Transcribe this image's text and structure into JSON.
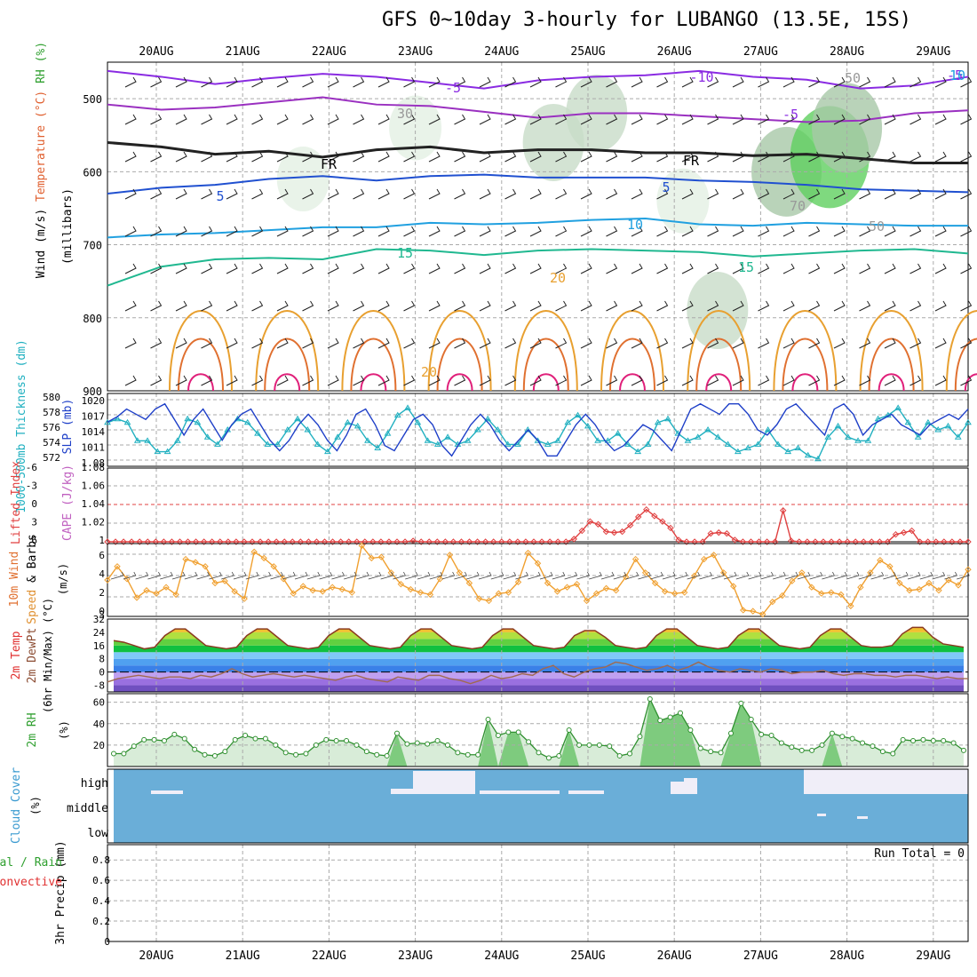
{
  "title": "GFS 0~10day 3-hourly for LUBANGO (13.5E, 15S)",
  "chart_data": [
    {
      "type": "line",
      "name": "upper-air-cross-section",
      "days": [
        "20AUG",
        "21AUG",
        "22AUG",
        "23AUG",
        "24AUG",
        "25AUG",
        "26AUG",
        "27AUG",
        "28AUG",
        "29AUG"
      ],
      "ylabel_parts": [
        {
          "text": "Wind (m/s)",
          "color": "#000000"
        },
        {
          "text": "Temperature (°C)",
          "color": "#e06030"
        },
        {
          "text": "RH (%)",
          "color": "#30a030"
        },
        {
          "text": "(millibars)",
          "color": "#000000"
        }
      ],
      "yticks": [
        500,
        600,
        700,
        800,
        900
      ],
      "ylim": [
        450,
        900
      ],
      "contour_labels": [
        "-10",
        "-5",
        "-5",
        "-5",
        "FR",
        "FR",
        "5",
        "5",
        "10",
        "15",
        "15",
        "20",
        "20",
        "10",
        "30",
        "50",
        "50",
        "70"
      ],
      "isotherms": [
        {
          "label": "-10",
          "color": "#8a2be2",
          "p": [
            462,
            470,
            480,
            472,
            466,
            470,
            478,
            486,
            475,
            470,
            468,
            462,
            470,
            474,
            486,
            482,
            470
          ]
        },
        {
          "label": "-5",
          "color": "#9a30c0",
          "p": [
            508,
            515,
            512,
            505,
            498,
            508,
            510,
            518,
            526,
            520,
            520,
            524,
            528,
            532,
            530,
            520,
            516
          ]
        },
        {
          "label": "FR",
          "color": "#222222",
          "p": [
            560,
            566,
            576,
            572,
            580,
            570,
            566,
            574,
            570,
            570,
            574,
            574,
            578,
            576,
            582,
            588,
            588
          ]
        },
        {
          "label": "5",
          "color": "#2050d0",
          "p": [
            630,
            622,
            618,
            610,
            606,
            612,
            606,
            604,
            608,
            608,
            608,
            612,
            614,
            618,
            624,
            626,
            628
          ]
        },
        {
          "label": "10",
          "color": "#20a0e0",
          "p": [
            690,
            686,
            684,
            680,
            676,
            676,
            670,
            672,
            670,
            666,
            664,
            672,
            674,
            670,
            672,
            674,
            674
          ]
        },
        {
          "label": "15",
          "color": "#20b890",
          "p": [
            756,
            730,
            720,
            718,
            720,
            706,
            708,
            714,
            708,
            706,
            708,
            710,
            716,
            712,
            708,
            706,
            712
          ]
        }
      ],
      "rh_cells": [
        {
          "day": 4.6,
          "p": 560,
          "rh": 50
        },
        {
          "day": 5.1,
          "p": 520,
          "rh": 50
        },
        {
          "day": 7.3,
          "p": 600,
          "rh": 70
        },
        {
          "day": 7.8,
          "p": 580,
          "rh": 90
        },
        {
          "day": 8.0,
          "p": 540,
          "rh": 70
        },
        {
          "day": 6.1,
          "p": 640,
          "rh": 30
        },
        {
          "day": 3.0,
          "p": 540,
          "rh": 30
        },
        {
          "day": 1.7,
          "p": 610,
          "rh": 30
        },
        {
          "day": 6.5,
          "p": 790,
          "rh": 50
        }
      ]
    },
    {
      "type": "line",
      "name": "thickness-slp",
      "ylabel_left": "1000-500mb Thickness (dm)",
      "ylabel_right": "SLP (mb)",
      "left_ticks": [
        "580",
        "578",
        "576",
        "574",
        "572"
      ],
      "right_ticks": [
        "1020",
        "1017",
        "1014",
        "1011",
        "1.08"
      ],
      "series": [
        {
          "name": "SLP",
          "color": "#1e3fc8",
          "marker": "none",
          "values": [
            1016.5,
            1017.5,
            1019,
            1018,
            1017,
            1019,
            1020,
            1017,
            1014,
            1017,
            1019,
            1016,
            1013,
            1016,
            1018,
            1019,
            1016,
            1013,
            1011,
            1013,
            1016,
            1018,
            1016,
            1013,
            1011,
            1014,
            1018,
            1019,
            1016,
            1012,
            1011,
            1014,
            1017,
            1018,
            1016,
            1012,
            1010,
            1013,
            1016,
            1018,
            1016,
            1013,
            1011,
            1013,
            1015,
            1013,
            1010,
            1010,
            1013,
            1016,
            1018,
            1016,
            1013,
            1011,
            1012,
            1014,
            1016,
            1015,
            1013,
            1011,
            1015,
            1019,
            1020,
            1019,
            1018,
            1020,
            1020,
            1018,
            1015,
            1014,
            1016,
            1019,
            1020,
            1018,
            1016,
            1014,
            1019,
            1020,
            1018,
            1014,
            1016,
            1017,
            1018,
            1016,
            1015,
            1014,
            1016,
            1017,
            1018,
            1017,
            1019
          ]
        },
        {
          "name": "Thickness",
          "color": "#20b0c0",
          "marker": "triangle",
          "values": [
            577,
            577.5,
            577,
            574.5,
            574.5,
            573,
            573,
            574.5,
            577.5,
            577,
            575,
            574,
            576,
            577.5,
            577,
            575.5,
            574,
            574,
            576,
            577.5,
            576,
            574,
            573,
            575,
            577,
            576.5,
            574.5,
            573.5,
            575.5,
            578,
            579,
            577,
            574.5,
            574,
            575,
            574,
            574.5,
            576,
            577.5,
            576,
            574,
            574,
            576,
            574.5,
            574,
            574.5,
            577,
            578,
            576.5,
            574.5,
            574.5,
            575.5,
            574,
            573,
            574,
            577,
            577.5,
            575.5,
            574.5,
            575,
            576,
            575,
            574,
            573,
            573.5,
            574,
            576,
            574,
            573,
            573.5,
            572.5,
            572,
            575,
            576.5,
            575,
            574.5,
            574.5,
            577.5,
            578,
            579,
            577,
            575,
            577,
            576,
            576.5,
            575,
            577
          ]
        }
      ]
    },
    {
      "type": "line",
      "name": "lifted-index-cape",
      "ylabel_left": "Lifted Index",
      "ylabel_right": "CAPE (J/kg)",
      "left_ticks": [
        "-6",
        "-3",
        "0",
        "3",
        "6"
      ],
      "right_ticks": [
        "1.08",
        "1.06",
        "1.04",
        "1.02",
        "1"
      ],
      "series": [
        {
          "name": "CAPE",
          "color": "#e04040",
          "marker": "diamond",
          "values": [
            1,
            1,
            1,
            1,
            1,
            1,
            1,
            1,
            1,
            1,
            1,
            1,
            1,
            1,
            1,
            1,
            1,
            1,
            1,
            1,
            1,
            1,
            1,
            1,
            1,
            1,
            1,
            1,
            1,
            1,
            1,
            1,
            1,
            1,
            1,
            1,
            1,
            1,
            1.001,
            1,
            1,
            1,
            1,
            1,
            1,
            1,
            1,
            1,
            1,
            1,
            1,
            1,
            1,
            1,
            1,
            1,
            1,
            1,
            1.003,
            1.012,
            1.022,
            1.019,
            1.011,
            1.01,
            1.011,
            1.018,
            1.027,
            1.035,
            1.028,
            1.022,
            1.015,
            1.002,
            1,
            1,
            1,
            1.009,
            1.01,
            1.009,
            1.002,
            1,
            1,
            1,
            1,
            1,
            1.034,
            1.001,
            1,
            1,
            1,
            1,
            1,
            1,
            1,
            1,
            1,
            1,
            1,
            1,
            1.008,
            1.01,
            1.012,
            1,
            1,
            1,
            1,
            1,
            1,
            1
          ]
        }
      ]
    },
    {
      "type": "line",
      "name": "10m-wind",
      "ylabel_parts": [
        {
          "text": "10m Wind",
          "color": "#e07030"
        },
        {
          "text": "Speed",
          "color": "#e09030"
        },
        {
          "text": "& Barbs",
          "color": "#000000"
        },
        {
          "text": "(m/s)",
          "color": "#000000"
        }
      ],
      "yticks": [
        "6",
        "4",
        "2",
        "0"
      ],
      "ylim": [
        0,
        7
      ],
      "series": [
        {
          "name": "Speed",
          "color": "#f0a030",
          "marker": "diamond",
          "values": [
            3.5,
            4.8,
            3.6,
            1.8,
            2.5,
            2.2,
            2.8,
            2.1,
            5.5,
            5.2,
            4.8,
            3.2,
            3.4,
            2.4,
            1.7,
            6.2,
            5.6,
            4.8,
            3.6,
            2.2,
            2.9,
            2.5,
            2.4,
            2.8,
            2.6,
            2.3,
            6.8,
            5.6,
            5.7,
            4.2,
            3.1,
            2.6,
            2.3,
            2.1,
            3.6,
            5.9,
            4.2,
            3.2,
            1.7,
            1.5,
            2.2,
            2.3,
            3.3,
            6.1,
            5.1,
            3.2,
            2.4,
            2.8,
            3.1,
            1.5,
            2.2,
            2.7,
            2.5,
            3.8,
            5.5,
            4.2,
            3.2,
            2.4,
            2.2,
            2.3,
            3.9,
            5.5,
            5.9,
            4.2,
            2.9,
            0.6,
            0.5,
            0.2,
            1.4,
            2.0,
            3.4,
            4.2,
            2.8,
            2.2,
            2.3,
            2.1,
            1.0,
            2.8,
            4.2,
            5.4,
            4.8,
            3.2,
            2.5,
            2.6,
            3.2,
            2.5,
            3.5,
            3.0,
            4.5
          ]
        }
      ]
    },
    {
      "type": "area",
      "name": "2m-temp-dewpoint",
      "ylabel_parts": [
        {
          "text": "2m Temp",
          "color": "#e03030"
        },
        {
          "text": "2m DewPt",
          "color": "#8a4a30"
        },
        {
          "text": "(6hr Min/Max) (°C)",
          "color": "#000000"
        }
      ],
      "yticks": [
        "32",
        "24",
        "16",
        "8",
        "0",
        "-8"
      ],
      "ylim": [
        -12,
        32
      ],
      "series": [
        {
          "name": "2m Temp",
          "color": "#8a3a20",
          "values": [
            19,
            18,
            16,
            14,
            15,
            22,
            26,
            26,
            21,
            16,
            15,
            14,
            15,
            22,
            26,
            26,
            21,
            16,
            15,
            14,
            15,
            22,
            26,
            26,
            21,
            16,
            15,
            14,
            15,
            22,
            26,
            26,
            21,
            16,
            15,
            14,
            15,
            22,
            26,
            26,
            21,
            16,
            15,
            14,
            15,
            22,
            25,
            25,
            21,
            16,
            15,
            14,
            15,
            22,
            26,
            26,
            21,
            16,
            15,
            14,
            15,
            22,
            26,
            26,
            21,
            16,
            15,
            14,
            15,
            22,
            26,
            26,
            21,
            16,
            15,
            15,
            16,
            23,
            27,
            27,
            21,
            17,
            16,
            15
          ]
        },
        {
          "name": "2m DewPt",
          "color": "#a06a50",
          "values": [
            -6,
            -4,
            -3,
            -2,
            -3,
            -4,
            -3,
            -3,
            -4,
            -2,
            -3,
            -1,
            2,
            -1,
            -3,
            -2,
            -1,
            -2,
            -3,
            -2,
            -3,
            -4,
            -5,
            -3,
            -2,
            -4,
            -5,
            -6,
            -3,
            -4,
            -5,
            -2,
            -2,
            -4,
            -5,
            -7,
            -5,
            -2,
            -4,
            -3,
            -1,
            -2,
            2,
            4,
            -1,
            -3,
            0,
            2,
            3,
            6,
            5,
            3,
            1,
            2,
            4,
            1,
            3,
            6,
            3,
            1,
            0,
            2,
            1,
            0,
            2,
            1,
            -1,
            0,
            0,
            1,
            -1,
            -2,
            -1,
            -1,
            -2,
            -2,
            -3,
            -2,
            -2,
            -3,
            -4,
            -3,
            -4,
            -4
          ]
        }
      ]
    },
    {
      "type": "area",
      "name": "2m-rh",
      "ylabel": "2m RH (%)",
      "yticks": [
        "60",
        "40",
        "20"
      ],
      "ylim": [
        0,
        68
      ],
      "series": [
        {
          "name": "2m RH",
          "color": "#30a030",
          "values": [
            12,
            12,
            19,
            25,
            25,
            24,
            30,
            26,
            16,
            11,
            10,
            14,
            25,
            29,
            26,
            26,
            20,
            13,
            11,
            12,
            20,
            25,
            24,
            24,
            20,
            14,
            11,
            10,
            31,
            21,
            22,
            21,
            24,
            20,
            13,
            11,
            11,
            44,
            29,
            32,
            32,
            23,
            13,
            8,
            10,
            34,
            20,
            20,
            20,
            19,
            10,
            12,
            28,
            63,
            43,
            46,
            50,
            34,
            17,
            14,
            13,
            31,
            59,
            44,
            30,
            29,
            22,
            18,
            15,
            15,
            20,
            31,
            28,
            26,
            22,
            19,
            14,
            12,
            25,
            24,
            25,
            24,
            24,
            22,
            15
          ]
        }
      ]
    },
    {
      "type": "area",
      "name": "cloud-cover",
      "ylabel": "Cloud Cover (%)",
      "levels": [
        "high",
        "middle",
        "low"
      ]
    },
    {
      "type": "bar",
      "name": "3hr-precip",
      "ylabel_parts": [
        {
          "text": "Total / Rain",
          "color": "#30a030"
        },
        {
          "text": "Convective",
          "color": "#e03030"
        },
        {
          "text": "3hr Precip (mm)",
          "color": "#000000"
        }
      ],
      "yticks": [
        "0.8",
        "0.6",
        "0.4",
        "0.2",
        "0"
      ],
      "ylim": [
        0,
        0.95
      ],
      "annotation": "Run Total = 0",
      "values": []
    }
  ]
}
